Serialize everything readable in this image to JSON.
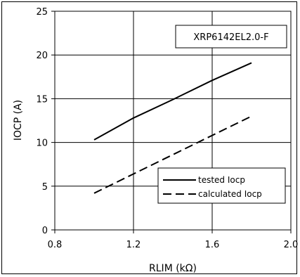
{
  "chart_data": {
    "type": "line",
    "title": "XRP6142EL2.0-F",
    "xlabel": "RLIM (kΩ)",
    "ylabel": "IOCP (A)",
    "xlim": [
      0.8,
      2.0
    ],
    "ylim": [
      0,
      25
    ],
    "x_ticks": [
      "0.8",
      "1.2",
      "1.6",
      "2.0"
    ],
    "y_ticks": [
      "0",
      "5",
      "10",
      "15",
      "20",
      "25"
    ],
    "grid": true,
    "legend_position": "bottom-right",
    "series": [
      {
        "name": "tested Iocp",
        "style": "solid",
        "color": "#000000",
        "points": [
          [
            1.0,
            10.3
          ],
          [
            1.2,
            12.8
          ],
          [
            1.4,
            14.9
          ],
          [
            1.6,
            17.1
          ],
          [
            1.8,
            19.1
          ]
        ]
      },
      {
        "name": "calculated Iocp",
        "style": "dashed",
        "color": "#000000",
        "points": [
          [
            1.0,
            4.2
          ],
          [
            1.2,
            6.4
          ],
          [
            1.4,
            8.6
          ],
          [
            1.6,
            10.8
          ],
          [
            1.8,
            13.0
          ]
        ]
      }
    ]
  }
}
